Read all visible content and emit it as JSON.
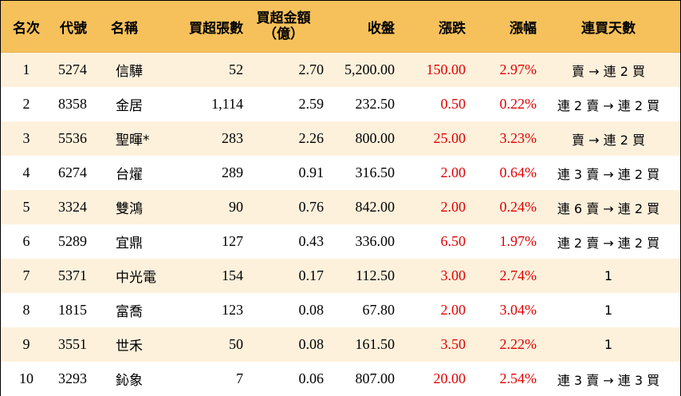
{
  "headers": {
    "rank": "名次",
    "code": "代號",
    "name": "名稱",
    "net_lots": "買超張數",
    "net_amount_line1": "買超金額",
    "net_amount_line2": "（億）",
    "close": "收盤",
    "change": "漲跌",
    "change_pct": "漲幅",
    "streak": "連買天數"
  },
  "rows": [
    {
      "rank": "1",
      "code": "5274",
      "name": "信驊",
      "net_lots": "52",
      "net_amount": "2.70",
      "close": "5,200.00",
      "change": "150.00",
      "change_pct": "2.97%",
      "streak": "賣 → 連 2 買"
    },
    {
      "rank": "2",
      "code": "8358",
      "name": "金居",
      "net_lots": "1,114",
      "net_amount": "2.59",
      "close": "232.50",
      "change": "0.50",
      "change_pct": "0.22%",
      "streak": "連 2 賣 → 連 2 買"
    },
    {
      "rank": "3",
      "code": "5536",
      "name": "聖暉*",
      "net_lots": "283",
      "net_amount": "2.26",
      "close": "800.00",
      "change": "25.00",
      "change_pct": "3.23%",
      "streak": "賣 → 連 2 買"
    },
    {
      "rank": "4",
      "code": "6274",
      "name": "台燿",
      "net_lots": "289",
      "net_amount": "0.91",
      "close": "316.50",
      "change": "2.00",
      "change_pct": "0.64%",
      "streak": "連 3 賣 → 連 2 買"
    },
    {
      "rank": "5",
      "code": "3324",
      "name": "雙鴻",
      "net_lots": "90",
      "net_amount": "0.76",
      "close": "842.00",
      "change": "2.00",
      "change_pct": "0.24%",
      "streak": "連 6 賣 → 連 2 買"
    },
    {
      "rank": "6",
      "code": "5289",
      "name": "宜鼎",
      "net_lots": "127",
      "net_amount": "0.43",
      "close": "336.00",
      "change": "6.50",
      "change_pct": "1.97%",
      "streak": "連 2 賣 → 連 2 買"
    },
    {
      "rank": "7",
      "code": "5371",
      "name": "中光電",
      "net_lots": "154",
      "net_amount": "0.17",
      "close": "112.50",
      "change": "3.00",
      "change_pct": "2.74%",
      "streak": "1"
    },
    {
      "rank": "8",
      "code": "1815",
      "name": "富喬",
      "net_lots": "123",
      "net_amount": "0.08",
      "close": "67.80",
      "change": "2.00",
      "change_pct": "3.04%",
      "streak": "1"
    },
    {
      "rank": "9",
      "code": "3551",
      "name": "世禾",
      "net_lots": "50",
      "net_amount": "0.08",
      "close": "161.50",
      "change": "3.50",
      "change_pct": "2.22%",
      "streak": "1"
    },
    {
      "rank": "10",
      "code": "3293",
      "name": "鈊象",
      "net_lots": "7",
      "net_amount": "0.06",
      "close": "807.00",
      "change": "20.00",
      "change_pct": "2.54%",
      "streak": "連 3 賣 → 連 3 買"
    }
  ],
  "colors": {
    "header_bg": "#f6c15a",
    "odd_row_bg": "#fdf1dc",
    "even_row_bg": "#ffffff",
    "positive": "#e00000"
  }
}
